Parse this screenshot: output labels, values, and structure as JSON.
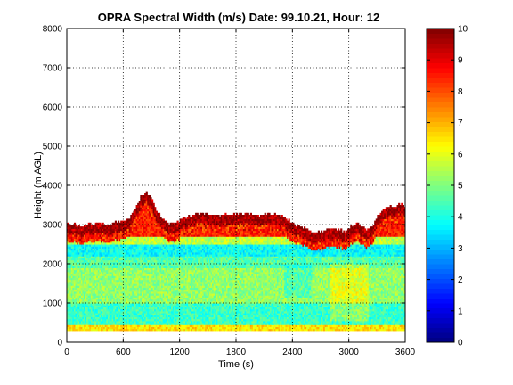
{
  "chart_data": {
    "type": "heatmap",
    "title": "OPRA Spectral Width (m/s)  Date: 99.10.21, Hour: 12",
    "xlabel": "Time (s)",
    "ylabel": "Height (m AGL)",
    "xlim": [
      0,
      3600
    ],
    "ylim": [
      0,
      8000
    ],
    "x_ticks": [
      "0",
      "600",
      "1200",
      "1800",
      "2400",
      "3000",
      "3600"
    ],
    "y_ticks": [
      "0",
      "1000",
      "2000",
      "3000",
      "4000",
      "5000",
      "6000",
      "7000",
      "8000"
    ],
    "grid": true,
    "colorbar": {
      "range": [
        0,
        10
      ],
      "ticks": [
        "0",
        "1",
        "2",
        "3",
        "4",
        "5",
        "6",
        "7",
        "8",
        "9",
        "10"
      ],
      "colormap": "jet"
    },
    "echo_top_profile": {
      "time_s": [
        0,
        60,
        120,
        180,
        240,
        300,
        360,
        420,
        480,
        540,
        600,
        660,
        720,
        780,
        840,
        900,
        960,
        1020,
        1080,
        1140,
        1200,
        1260,
        1320,
        1380,
        1440,
        1500,
        1560,
        1620,
        1680,
        1740,
        1800,
        1860,
        1920,
        1980,
        2040,
        2100,
        2160,
        2220,
        2280,
        2340,
        2400,
        2460,
        2520,
        2580,
        2640,
        2700,
        2760,
        2820,
        2880,
        2940,
        3000,
        3060,
        3120,
        3180,
        3240,
        3300,
        3360,
        3420,
        3480,
        3540,
        3600
      ],
      "top_height_m": [
        3000,
        3000,
        2950,
        2950,
        3000,
        3000,
        3000,
        2950,
        3000,
        3050,
        3050,
        3150,
        3400,
        3700,
        3800,
        3600,
        3300,
        3100,
        3000,
        3000,
        3100,
        3150,
        3200,
        3250,
        3250,
        3250,
        3250,
        3200,
        3250,
        3250,
        3250,
        3250,
        3250,
        3250,
        3200,
        3250,
        3250,
        3250,
        3200,
        3100,
        3000,
        2950,
        2900,
        2800,
        2800,
        2800,
        2850,
        2850,
        2850,
        2800,
        2900,
        3000,
        2950,
        2850,
        2950,
        3200,
        3350,
        3450,
        3400,
        3500,
        3450
      ]
    },
    "layers": [
      {
        "height_m": [
          0,
          300
        ],
        "width_ms": null
      },
      {
        "height_m": [
          300,
          450
        ],
        "width_ms": 6.5
      },
      {
        "height_m": [
          450,
          1000
        ],
        "width_ms": 4.3
      },
      {
        "height_m": [
          1000,
          1900
        ],
        "width_ms": 5.2
      },
      {
        "height_m": [
          1900,
          2200
        ],
        "width_ms": 4.6
      },
      {
        "height_m": [
          2200,
          2500
        ],
        "width_ms": 3.8
      },
      {
        "height_m": [
          2500,
          2700
        ],
        "width_ms": 5.6
      },
      {
        "height_m": [
          2700,
          "top"
        ],
        "width_ms": 8.5
      }
    ]
  }
}
